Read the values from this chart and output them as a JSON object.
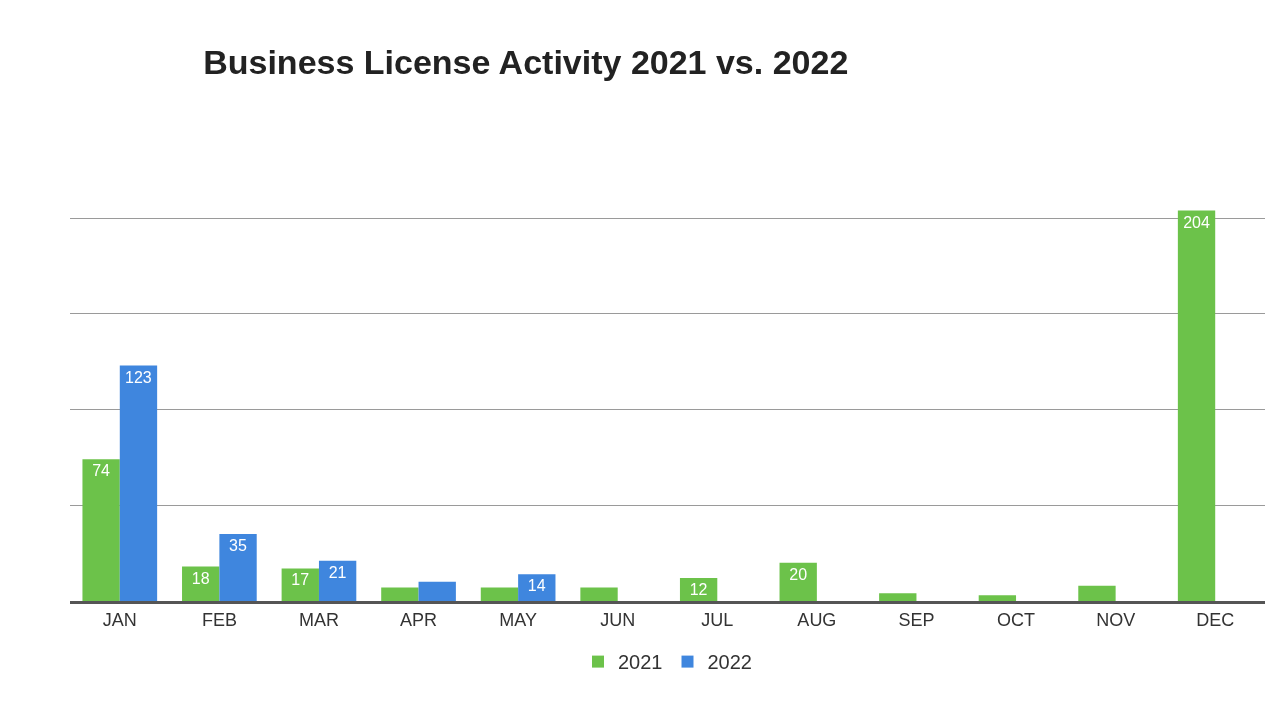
{
  "chart_data": {
    "type": "bar",
    "title": "Business License Activity 2021 vs. 2022",
    "categories": [
      "JAN",
      "FEB",
      "MAR",
      "APR",
      "MAY",
      "JUN",
      "JUL",
      "AUG",
      "SEP",
      "OCT",
      "NOV",
      "DEC"
    ],
    "series": [
      {
        "name": "2021",
        "color": "#6cc24a",
        "values": [
          74,
          18,
          17,
          7,
          7,
          7,
          12,
          20,
          4,
          3,
          8,
          204
        ],
        "value_labels": [
          "74",
          "18",
          "17",
          null,
          null,
          null,
          "12",
          "20",
          null,
          null,
          null,
          "204"
        ]
      },
      {
        "name": "2022",
        "color": "#3f86de",
        "values": [
          123,
          35,
          21,
          10,
          14,
          null,
          null,
          null,
          null,
          null,
          null,
          null
        ],
        "value_labels": [
          "123",
          "35",
          "21",
          null,
          "14",
          null,
          null,
          null,
          null,
          null,
          null,
          null
        ]
      }
    ],
    "yticks": [
      {
        "value": 0,
        "label": null
      },
      {
        "value": 50,
        "label": null
      },
      {
        "value": 100,
        "label": null
      },
      {
        "value": 150,
        "label": null
      },
      {
        "value": 200,
        "label": null
      }
    ],
    "grid": "y",
    "legend": "bottom",
    "tick_labels": "x"
  }
}
